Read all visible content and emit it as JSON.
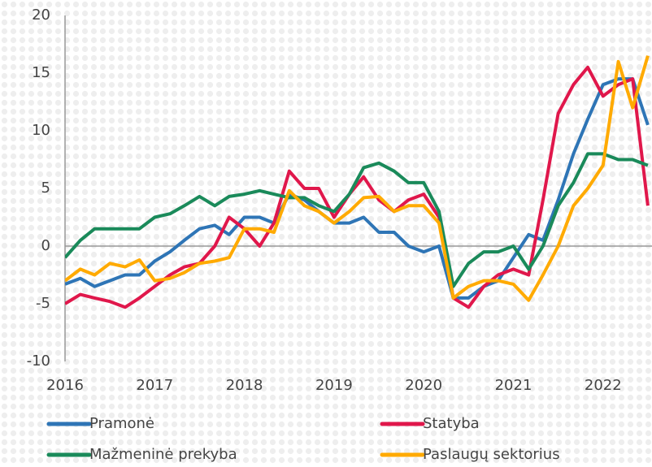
{
  "chart_data": {
    "type": "line",
    "x": [
      2016.0,
      2016.17,
      2016.33,
      2016.5,
      2016.67,
      2016.83,
      2017.0,
      2017.17,
      2017.33,
      2017.5,
      2017.67,
      2017.83,
      2018.0,
      2018.17,
      2018.33,
      2018.5,
      2018.67,
      2018.83,
      2019.0,
      2019.17,
      2019.33,
      2019.5,
      2019.67,
      2019.83,
      2020.0,
      2020.17,
      2020.33,
      2020.5,
      2020.67,
      2020.83,
      2021.0,
      2021.17,
      2021.33,
      2021.5,
      2021.67,
      2021.83,
      2022.0,
      2022.17,
      2022.33,
      2022.5
    ],
    "series": [
      {
        "name": "Pramonė",
        "color": "#2e75b6",
        "values": [
          -3.3,
          -2.8,
          -3.5,
          -3,
          -2.5,
          -2.5,
          -1.3,
          -0.5,
          0.5,
          1.5,
          1.8,
          1.0,
          2.5,
          2.5,
          2.0,
          4.5,
          4.0,
          3.0,
          2.0,
          2.0,
          2.5,
          1.2,
          1.2,
          0,
          -0.5,
          0,
          -4.5,
          -4.5,
          -3.5,
          -3,
          -1,
          1,
          0.5,
          4,
          8,
          11,
          14,
          14.5,
          14.5,
          10.5
        ]
      },
      {
        "name": "Statyba",
        "color": "#e0174b",
        "values": [
          -5,
          -4.2,
          -4.5,
          -4.8,
          -5.3,
          -4.5,
          -3.5,
          -2.5,
          -1.8,
          -1.5,
          0,
          2.5,
          1.5,
          0,
          2,
          6.5,
          5,
          5,
          2.5,
          4.5,
          6,
          4,
          3,
          4,
          4.5,
          2.5,
          -4.5,
          -5.3,
          -3.5,
          -2.5,
          -2,
          -2.5,
          4,
          11.5,
          14,
          15.5,
          13,
          14,
          14.5,
          3.5
        ]
      },
      {
        "name": "Mažmeninė prekyba",
        "color": "#1a8a5a",
        "values": [
          -1,
          0.5,
          1.5,
          1.5,
          1.5,
          1.5,
          2.5,
          2.8,
          3.5,
          4.3,
          3.5,
          4.3,
          4.5,
          4.8,
          4.5,
          4.2,
          4.2,
          3.5,
          3,
          4.5,
          6.8,
          7.2,
          6.5,
          5.5,
          5.5,
          3,
          -3.5,
          -1.5,
          -0.5,
          -0.5,
          0,
          -2,
          0,
          3.5,
          5.5,
          8,
          8,
          7.5,
          7.5,
          7
        ]
      },
      {
        "name": "Paslaugų sektorius",
        "color": "#ffaa00",
        "values": [
          -3,
          -2,
          -2.5,
          -1.5,
          -1.8,
          -1.2,
          -3,
          -2.8,
          -2.3,
          -1.5,
          -1.3,
          -1,
          1.5,
          1.5,
          1.2,
          4.8,
          3.5,
          3,
          2,
          3,
          4.2,
          4.3,
          3,
          3.5,
          3.5,
          2,
          -4.5,
          -3.5,
          -3,
          -3,
          -3.3,
          -4.7,
          -2.5,
          0,
          3.5,
          5,
          7,
          16,
          12,
          16.5
        ]
      }
    ],
    "xlim": [
      2016,
      2022.55
    ],
    "xticks": [
      2016,
      2017,
      2018,
      2019,
      2020,
      2021,
      2022
    ],
    "ylim": [
      -10,
      20
    ],
    "yticks": [
      -10,
      -5,
      0,
      5,
      10,
      15,
      20
    ]
  }
}
